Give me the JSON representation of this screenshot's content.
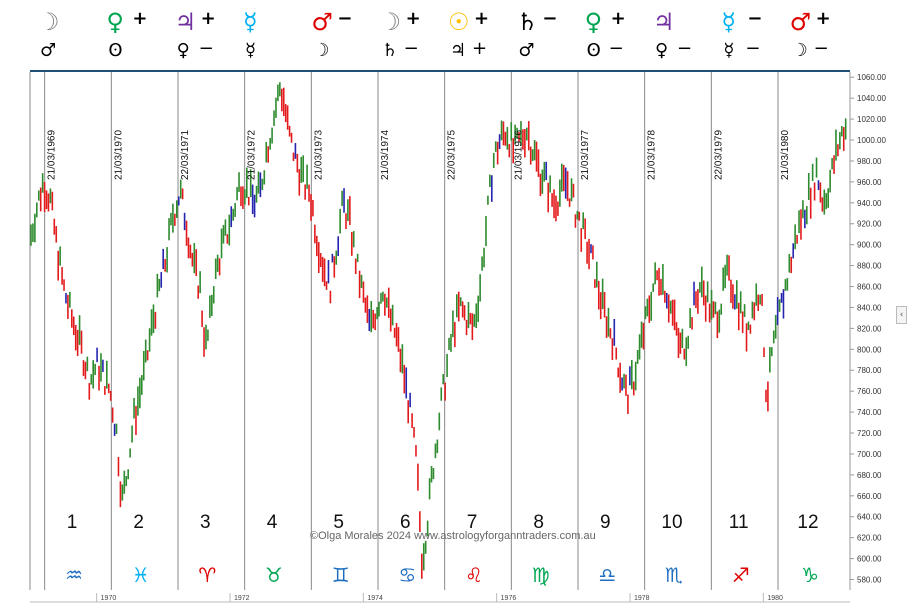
{
  "header": {
    "columns": [
      {
        "top": "☽",
        "top_color": "#7f7f7f",
        "top_mod": "",
        "bottom": "♂",
        "bottom_mod": ""
      },
      {
        "top": "♀",
        "top_color": "#00a651",
        "top_mod": "+",
        "bottom": "ʘ",
        "bottom_mod": ""
      },
      {
        "top": "♃",
        "top_color": "#7030a0",
        "top_mod": "+",
        "bottom": "♀",
        "bottom_mod": "−"
      },
      {
        "top": "☿",
        "top_color": "#00b0f0",
        "top_mod": "",
        "bottom": "☿",
        "bottom_mod": ""
      },
      {
        "top": "♂",
        "top_color": "#e00000",
        "top_mod": "−",
        "bottom": "☽",
        "bottom_mod": ""
      },
      {
        "top": "☽",
        "top_color": "#7f7f7f",
        "top_mod": "+",
        "bottom": "♄",
        "bottom_mod": "−"
      },
      {
        "top": "☉",
        "top_color": "#ffc000",
        "top_mod": "+",
        "bottom": "♃",
        "bottom_mod": "+"
      },
      {
        "top": "♄",
        "top_color": "#000000",
        "top_mod": "−",
        "bottom": "♂",
        "bottom_mod": ""
      },
      {
        "top": "♀",
        "top_color": "#00a651",
        "top_mod": "+",
        "bottom": "ʘ",
        "bottom_mod": "−"
      },
      {
        "top": "♃",
        "top_color": "#7030a0",
        "top_mod": "",
        "bottom": "♀",
        "bottom_mod": "−"
      },
      {
        "top": "☿",
        "top_color": "#00b0f0",
        "top_mod": "−",
        "bottom": "☿",
        "bottom_mod": "−"
      },
      {
        "top": "♂",
        "top_color": "#e00000",
        "top_mod": "+",
        "bottom": "☽",
        "bottom_mod": "−"
      }
    ]
  },
  "colors": {
    "up": "#2e8b2e",
    "down": "#e31a1c",
    "neutral": "#2424b0",
    "grid": "#888888",
    "rule": "#1f4e79"
  },
  "watermark": "©Olga Morales 2024  www.astrologyforganntraders.com.au",
  "collapse_icon": "‹",
  "chart_data": {
    "type": "line",
    "title": "",
    "y_ticks": [
      580,
      600,
      620,
      640,
      660,
      680,
      700,
      720,
      740,
      760,
      780,
      800,
      820,
      840,
      860,
      880,
      900,
      920,
      940,
      960,
      980,
      1000,
      1020,
      1040,
      1060
    ],
    "ylim": [
      570,
      1065
    ],
    "xlim": [
      1969.0,
      1981.3
    ],
    "year_labels": [
      1970,
      1972,
      1974,
      1976,
      1978,
      1980
    ],
    "ingress_lines": [
      {
        "x": 1969.22,
        "label": "21/03/1969"
      },
      {
        "x": 1970.22,
        "label": "21/03/1970"
      },
      {
        "x": 1971.22,
        "label": "22/03/1971"
      },
      {
        "x": 1972.22,
        "label": "21/03/1972"
      },
      {
        "x": 1973.22,
        "label": "21/03/1973"
      },
      {
        "x": 1974.22,
        "label": "21/03/1974"
      },
      {
        "x": 1975.22,
        "label": "22/03/1975"
      },
      {
        "x": 1976.22,
        "label": "21/03/1976"
      },
      {
        "x": 1977.22,
        "label": "21/03/1977"
      },
      {
        "x": 1978.22,
        "label": "21/03/1978"
      },
      {
        "x": 1979.22,
        "label": "22/03/1979"
      },
      {
        "x": 1980.22,
        "label": "21/03/1980"
      }
    ],
    "signs": [
      {
        "num": "1",
        "glyph": "♒",
        "color": "#1f6fc0"
      },
      {
        "num": "2",
        "glyph": "♓",
        "color": "#00b0f0"
      },
      {
        "num": "3",
        "glyph": "♈",
        "color": "#e00000"
      },
      {
        "num": "4",
        "glyph": "♉",
        "color": "#00a651"
      },
      {
        "num": "5",
        "glyph": "♊",
        "color": "#1f6fc0"
      },
      {
        "num": "6",
        "glyph": "♋",
        "color": "#1f6fc0"
      },
      {
        "num": "7",
        "glyph": "♌",
        "color": "#e00000"
      },
      {
        "num": "8",
        "glyph": "♍",
        "color": "#00a651"
      },
      {
        "num": "9",
        "glyph": "♎",
        "color": "#1f6fc0"
      },
      {
        "num": "10",
        "glyph": "♏",
        "color": "#1f6fc0"
      },
      {
        "num": "11",
        "glyph": "♐",
        "color": "#e00000"
      },
      {
        "num": "12",
        "glyph": "♑",
        "color": "#00a651"
      }
    ],
    "series": [
      {
        "values": [
          [
            1969.0,
            905
          ],
          [
            1969.1,
            935
          ],
          [
            1969.2,
            960
          ],
          [
            1969.3,
            945
          ],
          [
            1969.4,
            900
          ],
          [
            1969.5,
            860
          ],
          [
            1969.6,
            835
          ],
          [
            1969.7,
            815
          ],
          [
            1969.8,
            795
          ],
          [
            1969.9,
            770
          ],
          [
            1970.0,
            785
          ],
          [
            1970.1,
            775
          ],
          [
            1970.2,
            760
          ],
          [
            1970.3,
            720
          ],
          [
            1970.38,
            655
          ],
          [
            1970.45,
            680
          ],
          [
            1970.55,
            730
          ],
          [
            1970.65,
            760
          ],
          [
            1970.75,
            790
          ],
          [
            1970.85,
            830
          ],
          [
            1970.95,
            860
          ],
          [
            1971.05,
            890
          ],
          [
            1971.15,
            930
          ],
          [
            1971.25,
            950
          ],
          [
            1971.35,
            920
          ],
          [
            1971.45,
            880
          ],
          [
            1971.55,
            860
          ],
          [
            1971.6,
            820
          ],
          [
            1971.65,
            800
          ],
          [
            1971.75,
            860
          ],
          [
            1971.85,
            890
          ],
          [
            1971.95,
            910
          ],
          [
            1972.05,
            930
          ],
          [
            1972.15,
            960
          ],
          [
            1972.25,
            955
          ],
          [
            1972.35,
            940
          ],
          [
            1972.45,
            950
          ],
          [
            1972.55,
            990
          ],
          [
            1972.65,
            1020
          ],
          [
            1972.75,
            1050
          ],
          [
            1972.8,
            1040
          ],
          [
            1972.9,
            1000
          ],
          [
            1973.0,
            980
          ],
          [
            1973.1,
            960
          ],
          [
            1973.2,
            950
          ],
          [
            1973.3,
            910
          ],
          [
            1973.4,
            880
          ],
          [
            1973.5,
            860
          ],
          [
            1973.6,
            900
          ],
          [
            1973.7,
            940
          ],
          [
            1973.8,
            920
          ],
          [
            1973.9,
            880
          ],
          [
            1974.0,
            850
          ],
          [
            1974.1,
            820
          ],
          [
            1974.2,
            840
          ],
          [
            1974.3,
            860
          ],
          [
            1974.4,
            830
          ],
          [
            1974.5,
            810
          ],
          [
            1974.6,
            780
          ],
          [
            1974.7,
            740
          ],
          [
            1974.8,
            690
          ],
          [
            1974.88,
            600
          ],
          [
            1974.95,
            630
          ],
          [
            1975.05,
            690
          ],
          [
            1975.15,
            740
          ],
          [
            1975.25,
            780
          ],
          [
            1975.35,
            820
          ],
          [
            1975.45,
            840
          ],
          [
            1975.55,
            830
          ],
          [
            1975.65,
            820
          ],
          [
            1975.75,
            860
          ],
          [
            1975.85,
            920
          ],
          [
            1975.95,
            980
          ],
          [
            1976.05,
            1000
          ],
          [
            1976.15,
            1010
          ],
          [
            1976.25,
            990
          ],
          [
            1976.35,
            1000
          ],
          [
            1976.45,
            1010
          ],
          [
            1976.55,
            990
          ],
          [
            1976.65,
            970
          ],
          [
            1976.75,
            960
          ],
          [
            1976.85,
            940
          ],
          [
            1976.95,
            950
          ],
          [
            1977.05,
            960
          ],
          [
            1977.15,
            940
          ],
          [
            1977.25,
            920
          ],
          [
            1977.35,
            900
          ],
          [
            1977.45,
            880
          ],
          [
            1977.55,
            850
          ],
          [
            1977.65,
            830
          ],
          [
            1977.75,
            810
          ],
          [
            1977.85,
            780
          ],
          [
            1977.95,
            755
          ],
          [
            1978.05,
            770
          ],
          [
            1978.15,
            800
          ],
          [
            1978.25,
            830
          ],
          [
            1978.35,
            860
          ],
          [
            1978.45,
            875
          ],
          [
            1978.55,
            855
          ],
          [
            1978.65,
            830
          ],
          [
            1978.75,
            800
          ],
          [
            1978.85,
            810
          ],
          [
            1978.95,
            840
          ],
          [
            1979.05,
            860
          ],
          [
            1979.15,
            850
          ],
          [
            1979.25,
            830
          ],
          [
            1979.35,
            840
          ],
          [
            1979.45,
            870
          ],
          [
            1979.55,
            860
          ],
          [
            1979.65,
            840
          ],
          [
            1979.75,
            820
          ],
          [
            1979.85,
            840
          ],
          [
            1979.95,
            860
          ],
          [
            1980.0,
            820
          ],
          [
            1980.05,
            750
          ],
          [
            1980.12,
            790
          ],
          [
            1980.2,
            820
          ],
          [
            1980.3,
            850
          ],
          [
            1980.4,
            880
          ],
          [
            1980.5,
            910
          ],
          [
            1980.6,
            930
          ],
          [
            1980.7,
            950
          ],
          [
            1980.8,
            970
          ],
          [
            1980.9,
            940
          ],
          [
            1981.0,
            960
          ],
          [
            1981.1,
            990
          ],
          [
            1981.2,
            1010
          ]
        ]
      }
    ]
  }
}
